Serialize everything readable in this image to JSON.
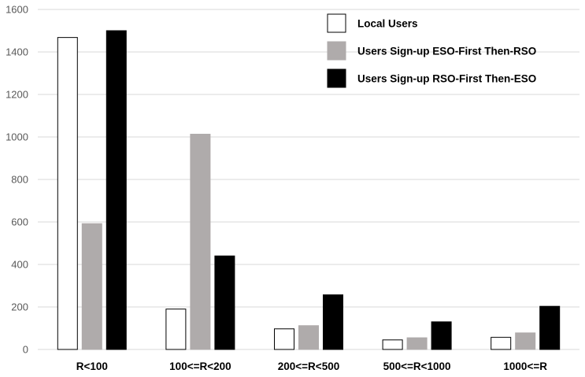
{
  "chart_data": {
    "type": "bar",
    "title": "",
    "xlabel": "",
    "ylabel": "",
    "ylim": [
      0,
      1600
    ],
    "yticks": [
      0,
      200,
      400,
      600,
      800,
      1000,
      1200,
      1400,
      1600
    ],
    "grid": true,
    "legend_position": "top-right",
    "categories": [
      "R<100",
      "100<=R<200",
      "200<=R<500",
      "500<=R<1000",
      "1000<=R"
    ],
    "series": [
      {
        "name": "Local Users",
        "color": "#ffffff",
        "stroke": "#000000",
        "values": [
          1468,
          190,
          97,
          45,
          57
        ]
      },
      {
        "name": "Users Sign-up ESO-First Then-RSO",
        "color": "#afabab",
        "stroke": "#afabab",
        "values": [
          592,
          1013,
          112,
          55,
          78
        ]
      },
      {
        "name": "Users Sign-up RSO-First Then-ESO",
        "color": "#000000",
        "stroke": "#000000",
        "values": [
          1500,
          440,
          257,
          130,
          203
        ]
      }
    ]
  }
}
